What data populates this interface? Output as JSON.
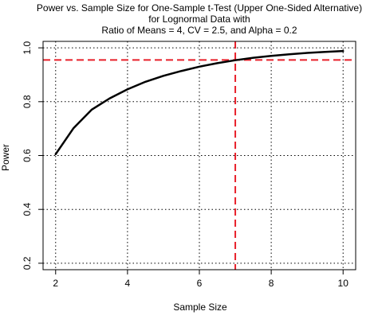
{
  "chart_data": {
    "type": "line",
    "title_lines": [
      "Power vs. Sample Size for One-Sample t-Test (Upper One-Sided Alternative)",
      "for Lognormal Data with",
      "Ratio of Means = 4, CV = 2.5, and Alpha = 0.2"
    ],
    "xlabel": "Sample Size",
    "ylabel": "Power",
    "xlim": [
      1.65,
      10.35
    ],
    "ylim": [
      0.176,
      1.024
    ],
    "x_ticks": [
      2,
      4,
      6,
      8,
      10
    ],
    "y_ticks": [
      0.2,
      0.4,
      0.6,
      0.8,
      1.0
    ],
    "x_tick_labels": [
      "2",
      "4",
      "6",
      "8",
      "10"
    ],
    "y_tick_labels": [
      "0.2",
      "0.4",
      "0.6",
      "0.8",
      "1.0"
    ],
    "grid": true,
    "series": [
      {
        "x": [
          2,
          2.5,
          3,
          3.5,
          4,
          4.5,
          5,
          5.5,
          6,
          6.5,
          7,
          7.5,
          8,
          8.5,
          9,
          9.5,
          10
        ],
        "y": [
          0.605,
          0.702,
          0.77,
          0.812,
          0.846,
          0.874,
          0.896,
          0.914,
          0.93,
          0.943,
          0.954,
          0.963,
          0.97,
          0.976,
          0.981,
          0.985,
          0.988
        ]
      }
    ],
    "reference_lines": {
      "horizontal_y": 0.955,
      "vertical_x": 7,
      "color": "#e8202a"
    }
  }
}
